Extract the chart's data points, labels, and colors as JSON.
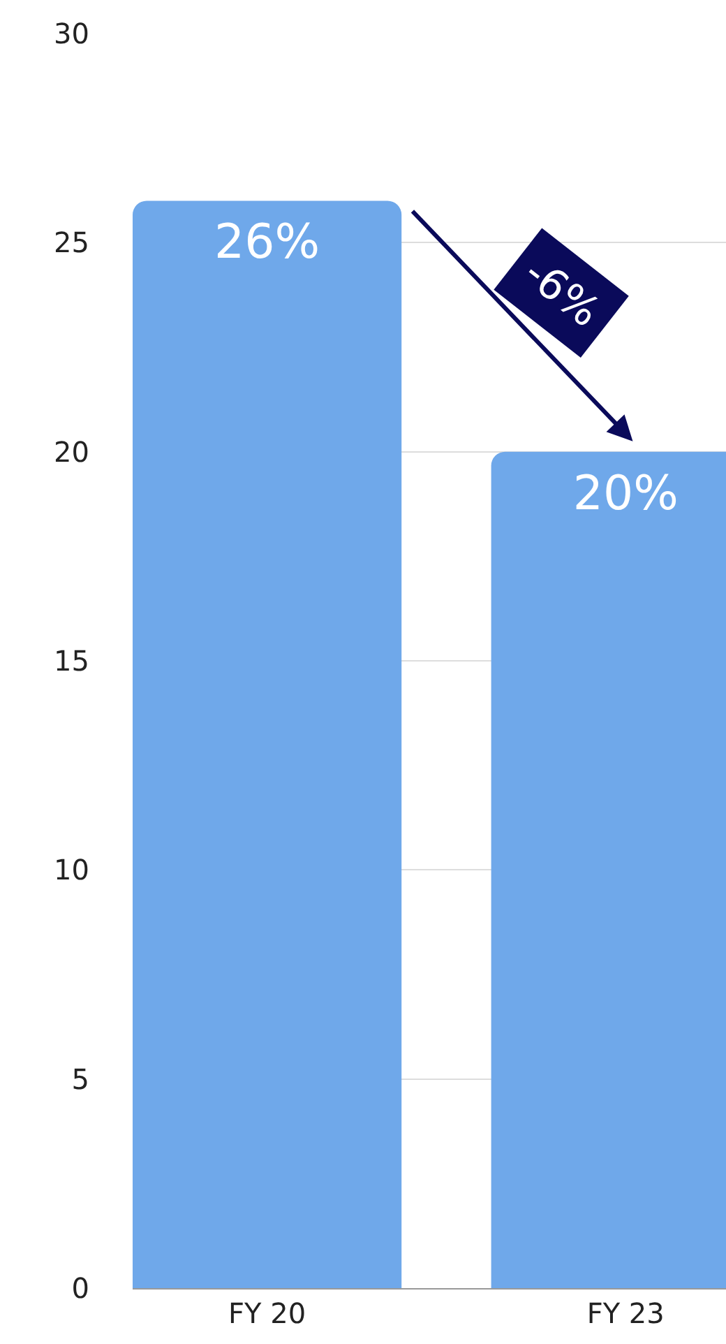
{
  "chart_data": {
    "type": "bar",
    "categories": [
      "FY 20",
      "FY 23"
    ],
    "values": [
      26,
      20
    ],
    "value_labels": [
      "26%",
      "20%"
    ],
    "color": "#6fa8ea",
    "ylim": [
      0,
      30
    ],
    "yticks": [
      0,
      5,
      10,
      15,
      20,
      25,
      30
    ],
    "grid": "y",
    "annotations": [
      "-6%"
    ]
  }
}
